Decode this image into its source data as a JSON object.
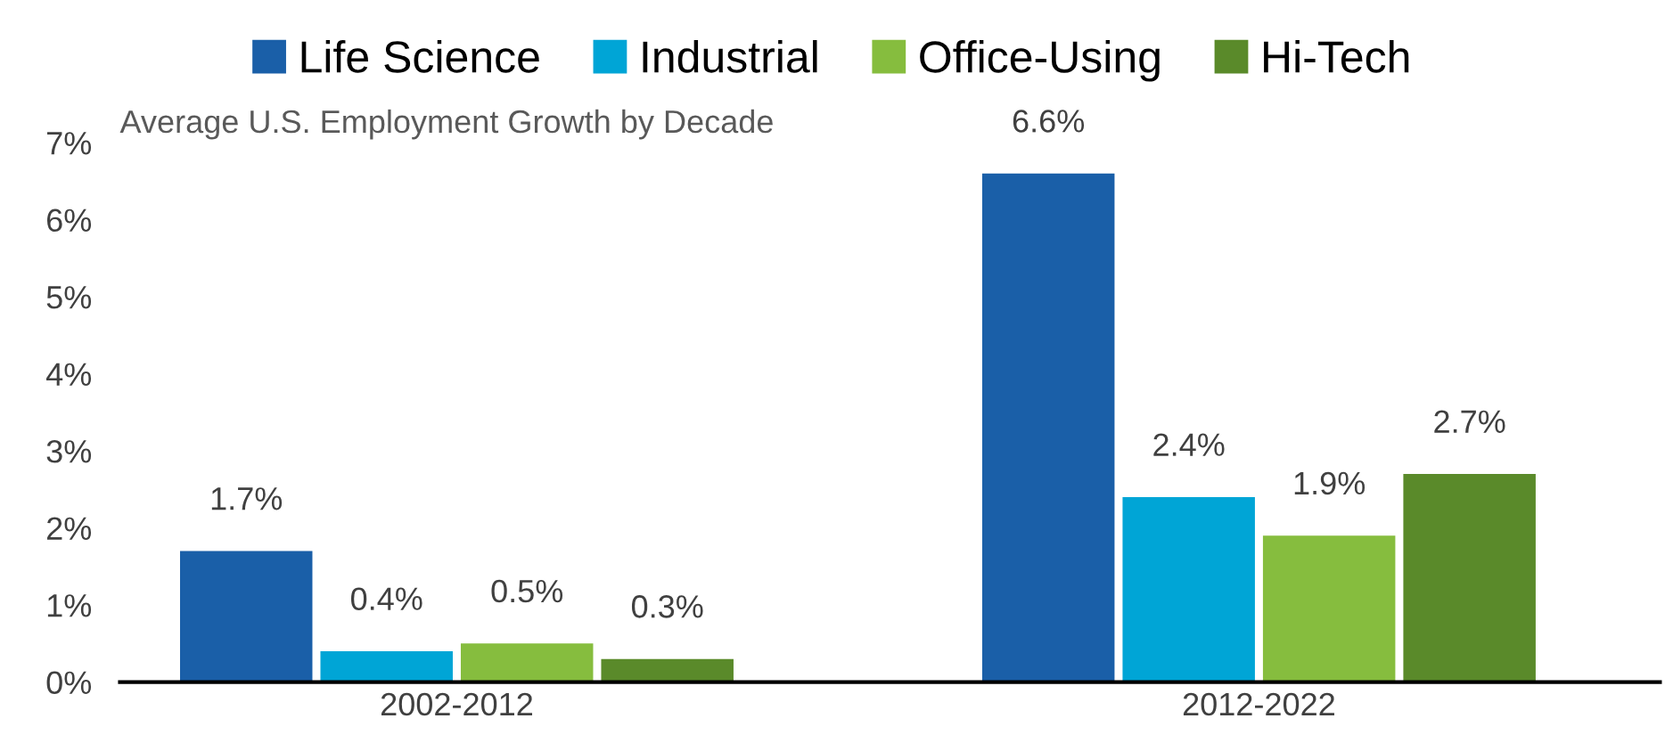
{
  "chart_data": {
    "type": "bar",
    "title": "Average U.S. Employment Growth by Decade",
    "categories": [
      "2002-2012",
      "2012-2022"
    ],
    "series": [
      {
        "name": "Life Science",
        "color": "#1a5fa8",
        "values": [
          1.7,
          6.6
        ],
        "value_labels": [
          "1.7%",
          "6.6%"
        ]
      },
      {
        "name": "Industrial",
        "color": "#00a5d6",
        "values": [
          0.4,
          2.4
        ],
        "value_labels": [
          "0.4%",
          "2.4%"
        ]
      },
      {
        "name": "Office-Using",
        "color": "#86bd3e",
        "values": [
          0.5,
          1.9
        ],
        "value_labels": [
          "0.5%",
          "1.9%"
        ]
      },
      {
        "name": "Hi-Tech",
        "color": "#5a8a2a",
        "values": [
          0.3,
          2.7
        ],
        "value_labels": [
          "0.3%",
          "2.7%"
        ]
      }
    ],
    "ylim": [
      0,
      7
    ],
    "yticks": [
      {
        "value": 0,
        "label": "0%"
      },
      {
        "value": 1,
        "label": "1%"
      },
      {
        "value": 2,
        "label": "2%"
      },
      {
        "value": 3,
        "label": "3%"
      },
      {
        "value": 4,
        "label": "4%"
      },
      {
        "value": 5,
        "label": "5%"
      },
      {
        "value": 6,
        "label": "6%"
      },
      {
        "value": 7,
        "label": "7%"
      }
    ],
    "grid": false,
    "legend": "top"
  }
}
